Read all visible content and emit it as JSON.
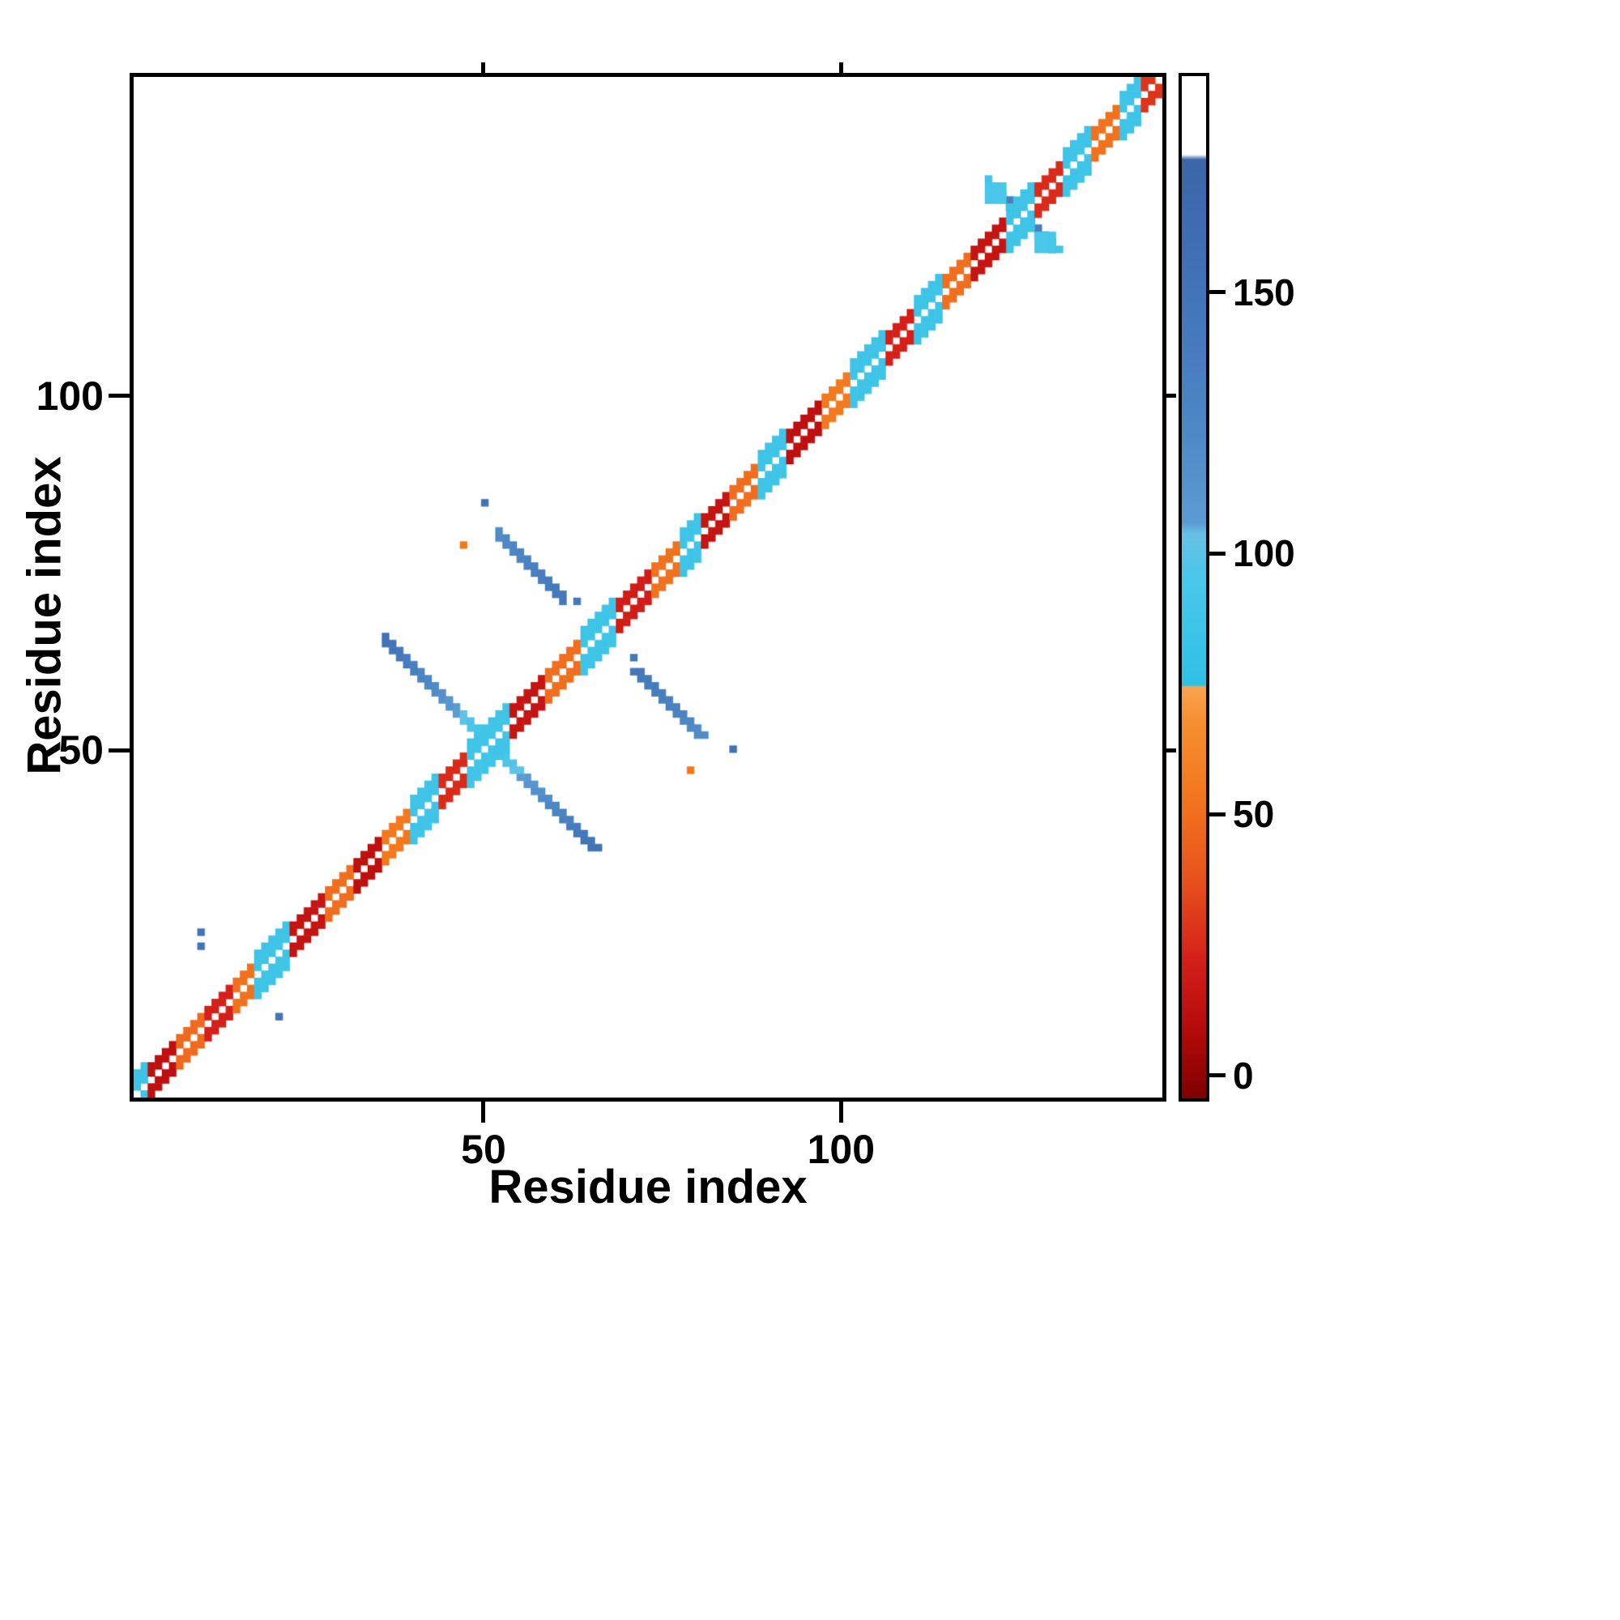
{
  "chart_data": {
    "type": "heatmap",
    "title": "",
    "xlabel": "Residue index",
    "ylabel": "Residue index",
    "x_range": [
      0.5,
      145.5
    ],
    "y_range": [
      0.5,
      145.5
    ],
    "x_ticks": [
      50,
      100
    ],
    "y_ticks": [
      50,
      100
    ],
    "grid": false,
    "background_color": "#ffffff",
    "axis_color": "#000000",
    "n_residues": 145,
    "diagonal_is_blank": true,
    "colorbar": {
      "range": [
        -5,
        192
      ],
      "ticks": [
        0,
        50,
        100,
        150
      ],
      "orientation": "vertical",
      "position": "right",
      "stops": [
        [
          -5,
          "#800000"
        ],
        [
          8,
          "#b40a0a"
        ],
        [
          22,
          "#d5201a"
        ],
        [
          38,
          "#e9541c"
        ],
        [
          55,
          "#f3791f"
        ],
        [
          68,
          "#f68f33"
        ],
        [
          74.5,
          "#f9a44e"
        ],
        [
          74.6,
          "#2fc0e4"
        ],
        [
          95,
          "#49c7ea"
        ],
        [
          104,
          "#67c0e4"
        ],
        [
          106,
          "#5b9bd2"
        ],
        [
          125,
          "#4d87c4"
        ],
        [
          150,
          "#4274b6"
        ],
        [
          176,
          "#3b66a8"
        ],
        [
          177,
          "#ffffff"
        ],
        [
          192,
          "#ffffff"
        ]
      ]
    },
    "diag_band": {
      "halfwidth": 2,
      "wide_halfwidth": 3,
      "segments": [
        [
          1,
          2,
          85
        ],
        [
          3,
          6,
          12
        ],
        [
          7,
          10,
          48
        ],
        [
          11,
          14,
          22
        ],
        [
          15,
          17,
          52
        ],
        [
          18,
          22,
          86
        ],
        [
          23,
          27,
          15
        ],
        [
          28,
          31,
          50
        ],
        [
          32,
          35,
          12
        ],
        [
          36,
          39,
          55
        ],
        [
          40,
          43,
          87
        ],
        [
          44,
          47,
          25
        ],
        [
          48,
          53,
          88
        ],
        [
          54,
          58,
          15
        ],
        [
          59,
          63,
          50
        ],
        [
          64,
          68,
          86
        ],
        [
          69,
          73,
          20
        ],
        [
          74,
          77,
          52
        ],
        [
          78,
          80,
          86
        ],
        [
          81,
          84,
          15
        ],
        [
          85,
          88,
          50
        ],
        [
          89,
          92,
          86
        ],
        [
          93,
          97,
          12
        ],
        [
          98,
          101,
          55
        ],
        [
          102,
          106,
          87
        ],
        [
          107,
          110,
          22
        ],
        [
          111,
          114,
          86
        ],
        [
          115,
          118,
          50
        ],
        [
          119,
          123,
          15
        ],
        [
          124,
          127,
          86
        ],
        [
          128,
          131,
          25
        ],
        [
          132,
          135,
          86
        ],
        [
          136,
          139,
          52
        ],
        [
          140,
          142,
          87
        ],
        [
          143,
          145,
          28
        ]
      ]
    },
    "features": [
      {
        "type": "streak",
        "start": [
          36,
          66
        ],
        "di": 1,
        "dj": -1,
        "steps": 15,
        "width": 2,
        "value_start": 152,
        "value_end": 88,
        "mirror": true
      },
      {
        "type": "streak",
        "start": [
          52,
          81
        ],
        "di": 1,
        "dj": -1,
        "steps": 10,
        "width": 2,
        "value_start": 120,
        "value_end": 145,
        "mirror": true
      },
      {
        "type": "streak",
        "start": [
          121,
          131
        ],
        "di": 1,
        "dj": -1,
        "steps": 10,
        "width": 2,
        "value_start": 90,
        "value_end": 150,
        "mirror": true
      },
      {
        "type": "blob",
        "center": [
          122,
          129
        ],
        "size": 3,
        "value": 95,
        "mirror": true
      },
      {
        "type": "dot",
        "pos": [
          47,
          79
        ],
        "value": 55,
        "mirror": true
      },
      {
        "type": "dot",
        "pos": [
          50,
          85
        ],
        "value": 152,
        "mirror": true
      },
      {
        "type": "dot",
        "pos": [
          63,
          71
        ],
        "value": 145,
        "mirror": true
      },
      {
        "type": "dot",
        "pos": [
          10,
          24
        ],
        "value": 150,
        "mirror": false
      },
      {
        "type": "dot",
        "pos": [
          10,
          22
        ],
        "value": 150,
        "mirror": false
      },
      {
        "type": "dot",
        "pos": [
          21,
          12
        ],
        "value": 150,
        "mirror": false
      }
    ]
  }
}
